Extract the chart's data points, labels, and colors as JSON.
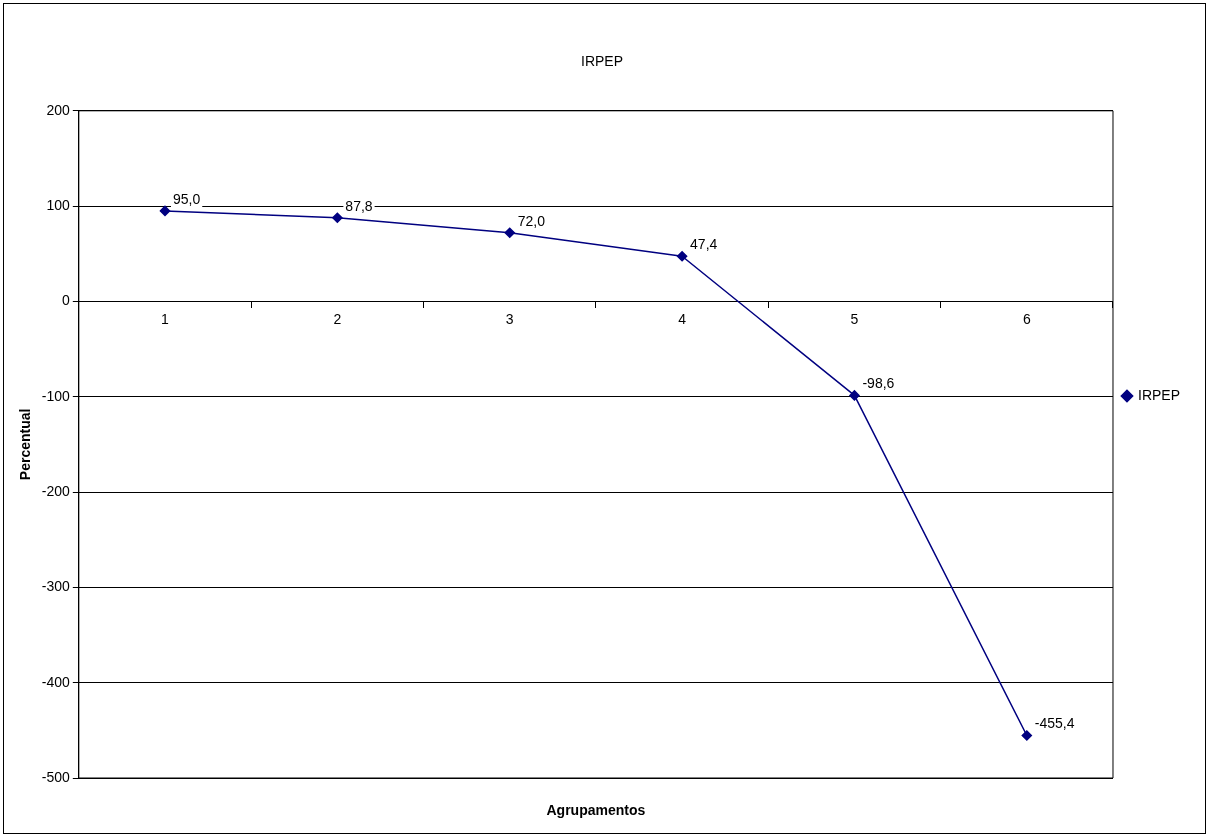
{
  "chart_data": {
    "type": "line",
    "title": "IRPEP",
    "xlabel": "Agrupamentos",
    "ylabel": "Percentual",
    "categories": [
      "1",
      "2",
      "3",
      "4",
      "5",
      "6"
    ],
    "series": [
      {
        "name": "IRPEP",
        "color": "#000080",
        "values": [
          95.0,
          87.8,
          72.0,
          47.4,
          -98.6,
          -455.4
        ],
        "value_labels": [
          "95,0",
          "87,8",
          "72,0",
          "47,4",
          "-98,6",
          "-455,4"
        ]
      }
    ],
    "ylim": [
      -500,
      200
    ],
    "yticks": [
      -500,
      -400,
      -300,
      -200,
      -100,
      0,
      100,
      200
    ],
    "grid": "y",
    "legend": "right",
    "marker": "diamond",
    "line_style": "solid"
  }
}
